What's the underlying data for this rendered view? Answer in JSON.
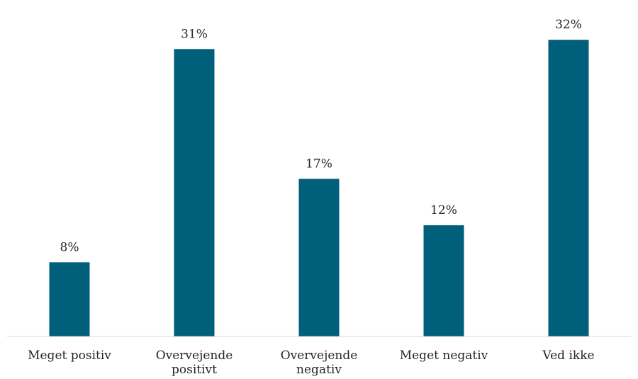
{
  "chart_data": {
    "type": "bar",
    "categories": [
      [
        "Meget positiv"
      ],
      [
        "Overvejende",
        "positivt"
      ],
      [
        "Overvejende",
        "negativ"
      ],
      [
        "Meget negativ"
      ],
      [
        "Ved ikke"
      ]
    ],
    "values": [
      8,
      31,
      17,
      12,
      32
    ],
    "value_labels": [
      "8%",
      "31%",
      "17%",
      "12%",
      "32%"
    ],
    "ylim": [
      0,
      34
    ],
    "grid": false,
    "legend": "none",
    "bar_color": "#005f7a",
    "axis_color": "#d9d9d9"
  }
}
